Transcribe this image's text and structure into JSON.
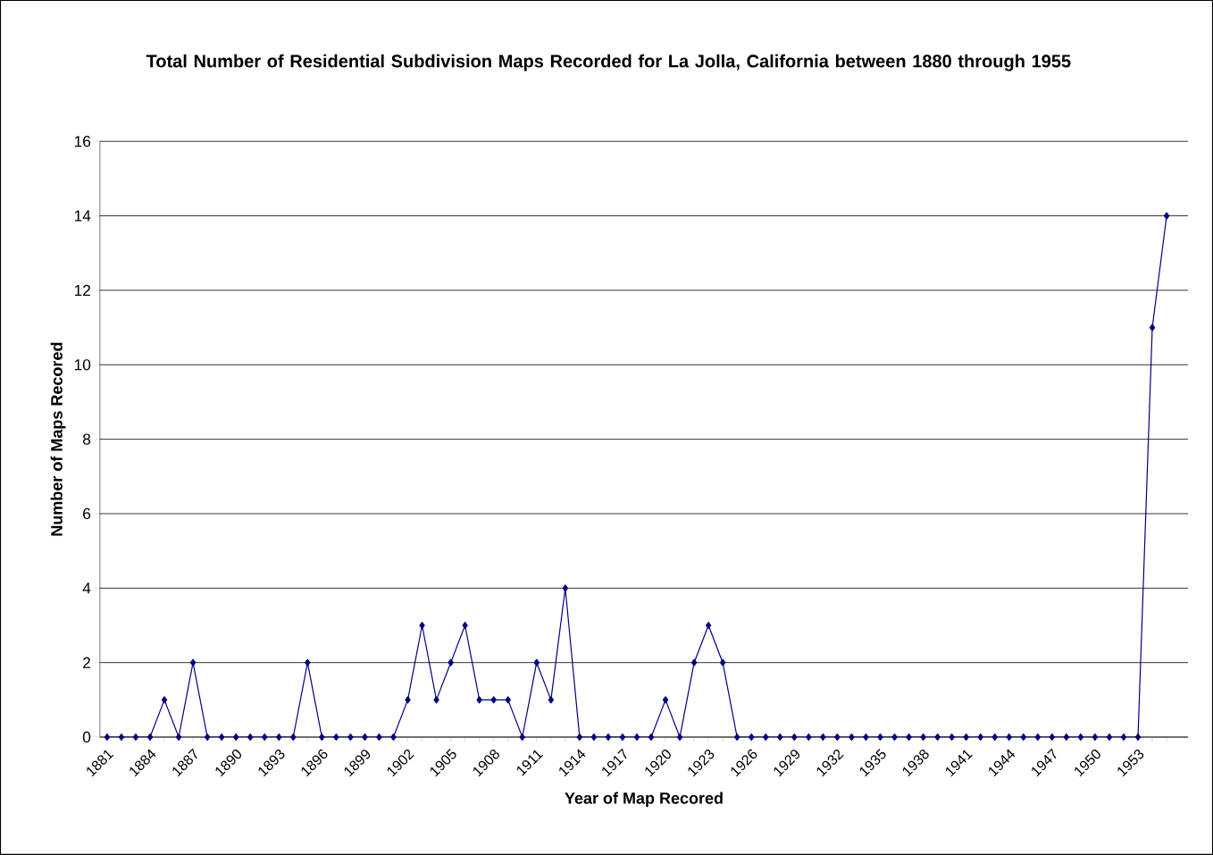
{
  "chart_data": {
    "type": "line",
    "title": "Total Number of Residential Subdivision Maps Recorded for La Jolla, California between 1880 through 1955",
    "xlabel": "Year of Map Recored",
    "ylabel": "Number of Maps Recored",
    "categories": [
      "1881",
      null,
      null,
      "1884",
      null,
      null,
      "1887",
      null,
      null,
      "1890",
      null,
      null,
      "1893",
      null,
      null,
      "1896",
      null,
      null,
      "1899",
      null,
      null,
      "1902",
      null,
      null,
      "1905",
      null,
      null,
      "1908",
      null,
      null,
      "1911",
      null,
      null,
      "1914",
      null,
      null,
      "1917",
      null,
      null,
      "1920",
      null,
      null,
      "1923",
      null,
      null,
      "1926",
      null,
      null,
      "1929",
      null,
      null,
      "1932",
      null,
      null,
      "1935",
      null,
      null,
      "1938",
      null,
      null,
      "1941",
      null,
      null,
      "1944",
      null,
      null,
      "1947",
      null,
      null,
      "1950",
      null,
      null,
      "1953",
      null,
      null
    ],
    "values": [
      0,
      0,
      0,
      0,
      1,
      0,
      2,
      0,
      0,
      0,
      0,
      0,
      0,
      0,
      2,
      0,
      0,
      0,
      0,
      0,
      0,
      1,
      3,
      1,
      2,
      3,
      1,
      1,
      1,
      0,
      2,
      1,
      4,
      0,
      0,
      0,
      0,
      0,
      0,
      1,
      0,
      2,
      3,
      2,
      0,
      0,
      0,
      0,
      0,
      0,
      0,
      0,
      0,
      0,
      0,
      0,
      0,
      0,
      0,
      0,
      0,
      0,
      0,
      0,
      0,
      0,
      0,
      0,
      0,
      0,
      0,
      0,
      0,
      11,
      14
    ],
    "color": "#000080",
    "marker": "diamond",
    "line_style": "solid",
    "grid": "y",
    "ylim": [
      0,
      16
    ],
    "yticks": [
      0,
      2,
      4,
      6,
      8,
      10,
      12,
      14,
      16
    ]
  }
}
